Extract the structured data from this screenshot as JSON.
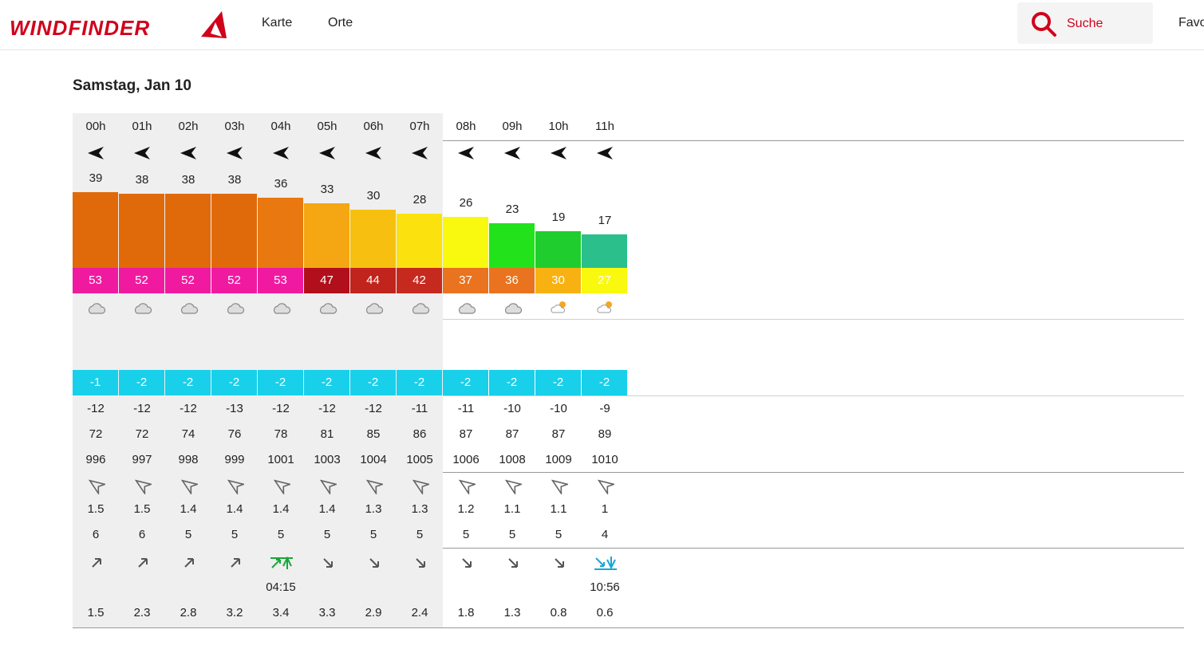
{
  "brand": {
    "name": "WINDFINDER"
  },
  "nav": {
    "items": [
      "Karte",
      "Orte"
    ]
  },
  "search": {
    "label": "Suche"
  },
  "favorites": {
    "label": "Favo"
  },
  "forecast": {
    "date": "Samstag, Jan 10",
    "hours": [
      {
        "h": "00h",
        "dir": "w",
        "speed": 39,
        "gust": 53,
        "wx": "cloud",
        "snow": "",
        "precip": "",
        "temp": -1,
        "dew": -12,
        "hum": 72,
        "press": 996,
        "wdir": "nw",
        "wh": 1.5,
        "wp": 6,
        "tidedir": "up",
        "tidetime": "",
        "tideh": 1.5,
        "night": true
      },
      {
        "h": "01h",
        "dir": "w",
        "speed": 38,
        "gust": 52,
        "wx": "cloud",
        "snow": "",
        "precip": "",
        "temp": -2,
        "dew": -12,
        "hum": 72,
        "press": 997,
        "wdir": "nw",
        "wh": 1.5,
        "wp": 6,
        "tidedir": "up",
        "tidetime": "",
        "tideh": 2.3,
        "night": true
      },
      {
        "h": "02h",
        "dir": "w",
        "speed": 38,
        "gust": 52,
        "wx": "cloud",
        "snow": "",
        "precip": "",
        "temp": -2,
        "dew": -12,
        "hum": 74,
        "press": 998,
        "wdir": "nw",
        "wh": 1.4,
        "wp": 5,
        "tidedir": "up",
        "tidetime": "",
        "tideh": 2.8,
        "night": true
      },
      {
        "h": "03h",
        "dir": "w",
        "speed": 38,
        "gust": 52,
        "wx": "cloud",
        "snow": "",
        "precip": "",
        "temp": -2,
        "dew": -13,
        "hum": 76,
        "press": 999,
        "wdir": "nw",
        "wh": 1.4,
        "wp": 5,
        "tidedir": "up",
        "tidetime": "",
        "tideh": 3.2,
        "night": true
      },
      {
        "h": "04h",
        "dir": "w",
        "speed": 36,
        "gust": 53,
        "wx": "cloud",
        "snow": "",
        "precip": "",
        "temp": -2,
        "dew": -12,
        "hum": 78,
        "press": 1001,
        "wdir": "nw",
        "wh": 1.4,
        "wp": 5,
        "tidedir": "high",
        "tidetime": "04:15",
        "tideh": 3.4,
        "night": true
      },
      {
        "h": "05h",
        "dir": "w",
        "speed": 33,
        "gust": 47,
        "wx": "cloud",
        "snow": "",
        "precip": "",
        "temp": -2,
        "dew": -12,
        "hum": 81,
        "press": 1003,
        "wdir": "nw",
        "wh": 1.4,
        "wp": 5,
        "tidedir": "down",
        "tidetime": "",
        "tideh": 3.3,
        "night": true
      },
      {
        "h": "06h",
        "dir": "w",
        "speed": 30,
        "gust": 44,
        "wx": "cloud",
        "snow": "",
        "precip": "",
        "temp": -2,
        "dew": -12,
        "hum": 85,
        "press": 1004,
        "wdir": "nw",
        "wh": 1.3,
        "wp": 5,
        "tidedir": "down",
        "tidetime": "",
        "tideh": 2.9,
        "night": true
      },
      {
        "h": "07h",
        "dir": "w",
        "speed": 28,
        "gust": 42,
        "wx": "cloud",
        "snow": "",
        "precip": "",
        "temp": -2,
        "dew": -11,
        "hum": 86,
        "press": 1005,
        "wdir": "nw",
        "wh": 1.3,
        "wp": 5,
        "tidedir": "down",
        "tidetime": "",
        "tideh": 2.4,
        "night": true
      },
      {
        "h": "08h",
        "dir": "w",
        "speed": 26,
        "gust": 37,
        "wx": "cloud",
        "snow": "",
        "precip": "",
        "temp": -2,
        "dew": -11,
        "hum": 87,
        "press": 1006,
        "wdir": "nw",
        "wh": 1.2,
        "wp": 5,
        "tidedir": "down",
        "tidetime": "",
        "tideh": 1.8,
        "night": false
      },
      {
        "h": "09h",
        "dir": "w",
        "speed": 23,
        "gust": 36,
        "wx": "cloud",
        "snow": "",
        "precip": "",
        "temp": -2,
        "dew": -10,
        "hum": 87,
        "press": 1008,
        "wdir": "nw",
        "wh": 1.1,
        "wp": 5,
        "tidedir": "down",
        "tidetime": "",
        "tideh": 1.3,
        "night": false
      },
      {
        "h": "10h",
        "dir": "w",
        "speed": 19,
        "gust": 30,
        "wx": "sun-cloud",
        "snow": "",
        "precip": "",
        "temp": -2,
        "dew": -10,
        "hum": 87,
        "press": 1009,
        "wdir": "nw",
        "wh": 1.1,
        "wp": 5,
        "tidedir": "down",
        "tidetime": "",
        "tideh": 0.8,
        "night": false
      },
      {
        "h": "11h",
        "dir": "w",
        "speed": 17,
        "gust": 27,
        "wx": "sun-cloud",
        "snow": "",
        "precip": "",
        "temp": -2,
        "dew": -9,
        "hum": 89,
        "press": 1010,
        "wdir": "nw",
        "wh": 1,
        "wp": 4,
        "tidedir": "low",
        "tidetime": "10:56",
        "tideh": 0.6,
        "night": false
      }
    ]
  },
  "colors": {
    "speed": {
      "39": "#e06a0a",
      "38": "#e06a0a",
      "36": "#e8780f",
      "33": "#f4a712",
      "30": "#f7c010",
      "28": "#fbe20f",
      "26": "#f9f80f",
      "23": "#22e31b",
      "19": "#1fce2e",
      "17": "#2bbf8c",
      "13": "#18c0ee",
      "16": "#2bbf8c",
      "18": "#1fce2e",
      "15": "#18d0ea",
      "12": "#18c0ee"
    },
    "gust": {
      "53": "#f01aa0",
      "52": "#f01aa0",
      "47": "#b10f1b",
      "44": "#c0241c",
      "42": "#c62a1f",
      "37": "#e9731f",
      "36": "#e9731f",
      "30": "#f7b212",
      "27": "#f9f80f",
      "20": "#2bd14a",
      "21": "#23c63a",
      "18": "#3dd14d",
      "17": "#2bbf8c",
      "19": "#23c63a",
      "15": "#18d0ea",
      "13": "#1ccde9",
      "12": "#16c2ee"
    }
  }
}
